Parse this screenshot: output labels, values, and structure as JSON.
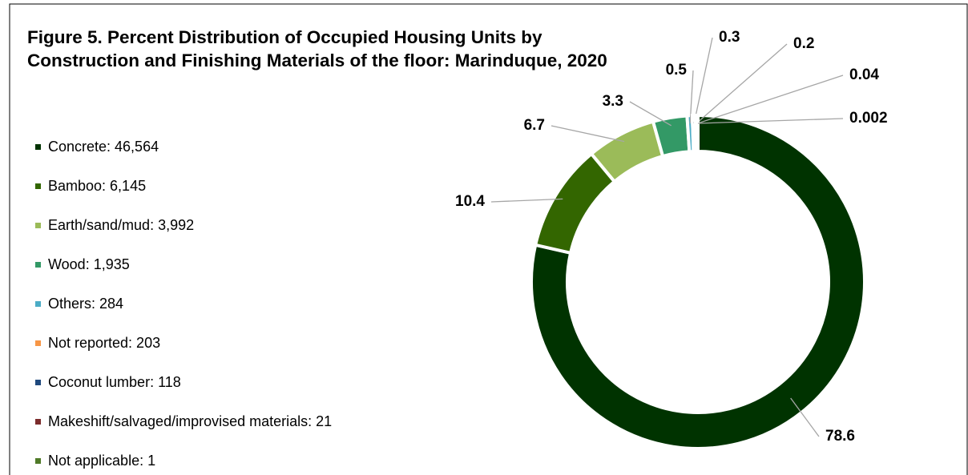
{
  "chart_data": {
    "type": "donut",
    "title": "Figure 5. Percent Distribution of Occupied Housing Units by Construction and Finishing Materials of the floor: Marinduque, 2020",
    "categories": [
      "Concrete: 46,564",
      "Bamboo: 6,145",
      "Earth/sand/mud: 3,992",
      "Wood: 1,935",
      "Others: 284",
      "Not reported: 203",
      "Coconut lumber: 118",
      "Makeshift/salvaged/improvised materials: 21",
      "Not applicable: 1"
    ],
    "values": [
      78.6,
      10.4,
      6.7,
      3.3,
      0.5,
      0.3,
      0.2,
      0.04,
      0.002
    ],
    "colors": [
      "#003300",
      "#336600",
      "#9bbb59",
      "#339966",
      "#4bacc6",
      "#f79646",
      "#1f497d",
      "#7b2c2c",
      "#4f7a28"
    ],
    "legend": "left"
  }
}
